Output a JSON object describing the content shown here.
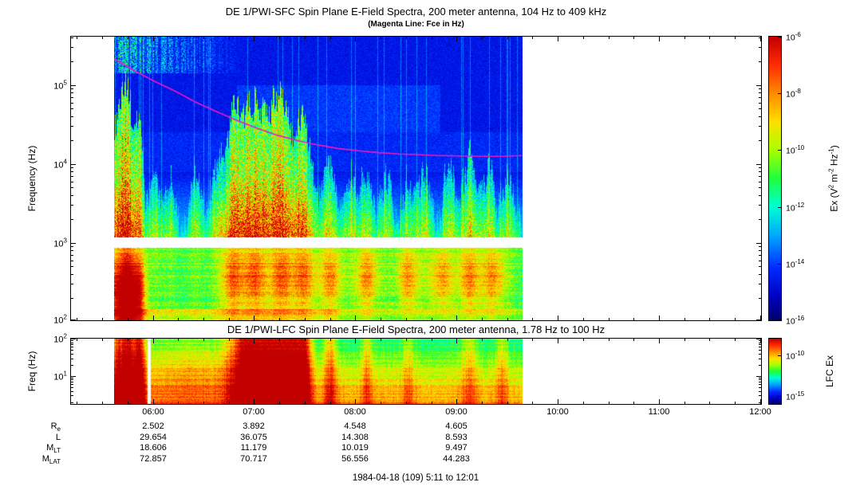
{
  "chart_data": [
    {
      "type": "heatmap",
      "instrument": "DE 1/PWI-SFC",
      "title": "DE 1/PWI-SFC  Spin Plane E-Field Spectra, 200 meter antenna, 104 Hz to 409 kHz",
      "subtitle": "(Magenta Line: Fce in Hz)",
      "ylabel": "Frequency (Hz)",
      "y_scale": "log",
      "y_range_hz": [
        104,
        409000
      ],
      "y_tick_exponents": [
        5,
        4,
        3,
        2
      ],
      "x_start": "05:11",
      "x_end": "12:01",
      "x_tick_labels": [
        "06:00",
        "07:00",
        "08:00",
        "09:00",
        "10:00",
        "11:00",
        "12:00"
      ],
      "data_start": "05:37",
      "data_end": "09:39",
      "gap_band_logf": [
        2.93,
        3.06
      ],
      "colorbar": {
        "label_segments": [
          {
            "t": "Ex (V"
          },
          {
            "s": "2"
          },
          {
            "t": " m"
          },
          {
            "s": "-2"
          },
          {
            "t": " Hz"
          },
          {
            "s": "-1"
          },
          {
            "t": ")"
          }
        ],
        "tick_exponents": [
          -6,
          -8,
          -10,
          -12,
          -14,
          -16
        ],
        "range_exponents": [
          -6,
          -16
        ]
      },
      "fce_line_color": "#f018c8",
      "fce_line_hz": [
        [
          0,
          214000
        ],
        [
          0.05,
          151000
        ],
        [
          0.1,
          110000
        ],
        [
          0.15,
          83000
        ],
        [
          0.2,
          60000
        ],
        [
          0.25,
          46000
        ],
        [
          0.3,
          35500
        ],
        [
          0.35,
          28200
        ],
        [
          0.4,
          22900
        ],
        [
          0.45,
          19500
        ],
        [
          0.5,
          17200
        ],
        [
          0.55,
          15500
        ],
        [
          0.6,
          14500
        ],
        [
          0.65,
          13700
        ],
        [
          0.7,
          13200
        ],
        [
          0.75,
          12900
        ],
        [
          0.8,
          12600
        ],
        [
          0.85,
          12450
        ],
        [
          0.9,
          12300
        ],
        [
          0.95,
          12300
        ],
        [
          1,
          12600
        ]
      ],
      "bursts": [
        [
          0.005,
          0.85,
          0.012
        ],
        [
          0.032,
          1.0,
          0.012
        ],
        [
          0.06,
          0.8,
          0.01
        ],
        [
          0.1,
          0.45,
          0.015
        ],
        [
          0.14,
          0.4,
          0.012
        ],
        [
          0.2,
          0.5,
          0.015
        ],
        [
          0.25,
          0.45,
          0.012
        ],
        [
          0.29,
          0.75,
          0.02
        ],
        [
          0.345,
          0.95,
          0.03
        ],
        [
          0.41,
          0.9,
          0.025
        ],
        [
          0.465,
          0.8,
          0.02
        ],
        [
          0.53,
          0.55,
          0.018
        ],
        [
          0.58,
          0.45,
          0.015
        ],
        [
          0.62,
          0.5,
          0.015
        ],
        [
          0.67,
          0.45,
          0.015
        ],
        [
          0.72,
          0.4,
          0.015
        ],
        [
          0.76,
          0.5,
          0.015
        ],
        [
          0.82,
          0.45,
          0.015
        ],
        [
          0.87,
          0.55,
          0.018
        ],
        [
          0.92,
          0.5,
          0.015
        ],
        [
          0.97,
          0.45,
          0.015
        ]
      ],
      "low_band_blob_times": [
        0.29,
        0.345,
        0.41,
        0.465,
        0.53,
        0.62,
        0.72,
        0.8,
        0.87,
        0.93
      ],
      "low_band_red_spots": [
        [
          0.005,
          0.3
        ],
        [
          0.032,
          0.55
        ],
        [
          0.06,
          0.35
        ]
      ]
    },
    {
      "type": "heatmap",
      "instrument": "DE 1/PWI-LFC",
      "title": "DE 1/PWI-LFC  Spin Plane E-Field Spectra, 200 meter antenna, 1.78 Hz to 100 Hz",
      "ylabel": "Freq (Hz)",
      "y_scale": "log",
      "y_range_hz": [
        1.78,
        100
      ],
      "y_tick_exponents": [
        2,
        1
      ],
      "colorbar": {
        "label_segments": [
          {
            "t": "LFC Ex"
          }
        ],
        "tick_exponents": [
          -10,
          -15
        ],
        "range_exponents": [
          -8,
          -16
        ]
      },
      "bursts": [
        [
          0.005,
          0.6,
          0.01
        ],
        [
          0.032,
          1.0,
          0.014
        ],
        [
          0.062,
          0.85,
          0.01
        ],
        [
          0.33,
          1.0,
          0.035
        ],
        [
          0.385,
          1.0,
          0.03
        ],
        [
          0.435,
          0.95,
          0.025
        ],
        [
          0.46,
          0.8,
          0.015
        ],
        [
          0.53,
          0.45,
          0.012
        ],
        [
          0.62,
          0.35,
          0.01
        ],
        [
          0.72,
          0.3,
          0.012
        ],
        [
          0.87,
          0.35,
          0.015
        ],
        [
          0.95,
          0.3,
          0.012
        ]
      ],
      "dropout_t": 0.085
    }
  ],
  "ephemeris": {
    "tick_times": [
      "06:00",
      "07:00",
      "08:00",
      "09:00"
    ],
    "rows": [
      {
        "label": [
          {
            "t": "R"
          },
          {
            "b": "e"
          }
        ],
        "values": [
          "2.502",
          "3.892",
          "4.548",
          "4.605"
        ]
      },
      {
        "label": [
          {
            "t": "L"
          }
        ],
        "values": [
          "29.654",
          "36.075",
          "14.308",
          "8.593"
        ]
      },
      {
        "label": [
          {
            "t": "M"
          },
          {
            "b": "LT"
          }
        ],
        "values": [
          "18.606",
          "11.179",
          "10.019",
          "9.497"
        ]
      },
      {
        "label": [
          {
            "t": "M"
          },
          {
            "b": "LAT"
          }
        ],
        "values": [
          "72.857",
          "70.717",
          "56.556",
          "44.283"
        ]
      }
    ]
  },
  "footer": "1984-04-18 (109) 5:11 to 12:01"
}
